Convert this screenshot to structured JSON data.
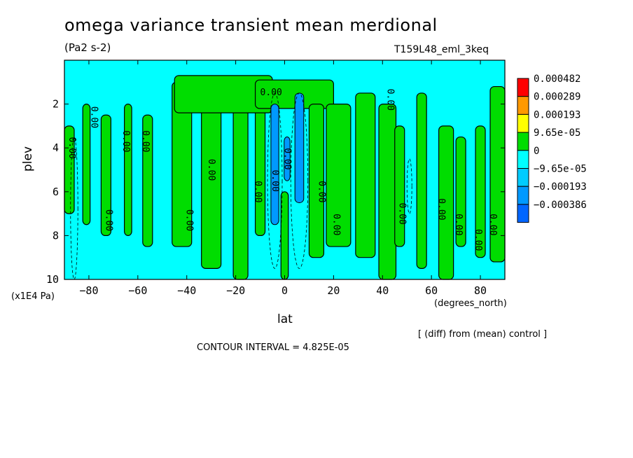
{
  "chart_data": {
    "type": "heatmap",
    "title": "omega variance transient mean merdional",
    "units": "(Pa2 s-2)",
    "run_id": "T159L48_eml_3keq",
    "xlabel": "lat",
    "x_units": "(degrees_north)",
    "ylabel": "plev",
    "y_units": "(x1E4 Pa)",
    "xlim": [
      -90,
      90
    ],
    "ylim": [
      10,
      0
    ],
    "x_ticks": [
      -80,
      -60,
      -40,
      -20,
      0,
      20,
      40,
      60,
      80
    ],
    "y_ticks": [
      2,
      4,
      6,
      8,
      10
    ],
    "diff_note": "[ (diff) from (mean) control ]",
    "contour_interval": "CONTOUR INTERVAL = 4.825E-05",
    "contour_label": "0.00",
    "colorbar": {
      "labels": [
        "0.000482",
        "0.000289",
        "0.000193",
        "9.65e-05",
        "0",
        "−9.65e-05",
        "−0.000193",
        "−0.000386"
      ],
      "colors": [
        "#ff0000",
        "#ff9900",
        "#ffff00",
        "#00dd00",
        "#00ffff",
        "#00ccff",
        "#0099ff",
        "#0066ff"
      ]
    },
    "background_color": "#00ffff",
    "positive_color": "#00dd00",
    "negative_color": "#0099ff"
  }
}
